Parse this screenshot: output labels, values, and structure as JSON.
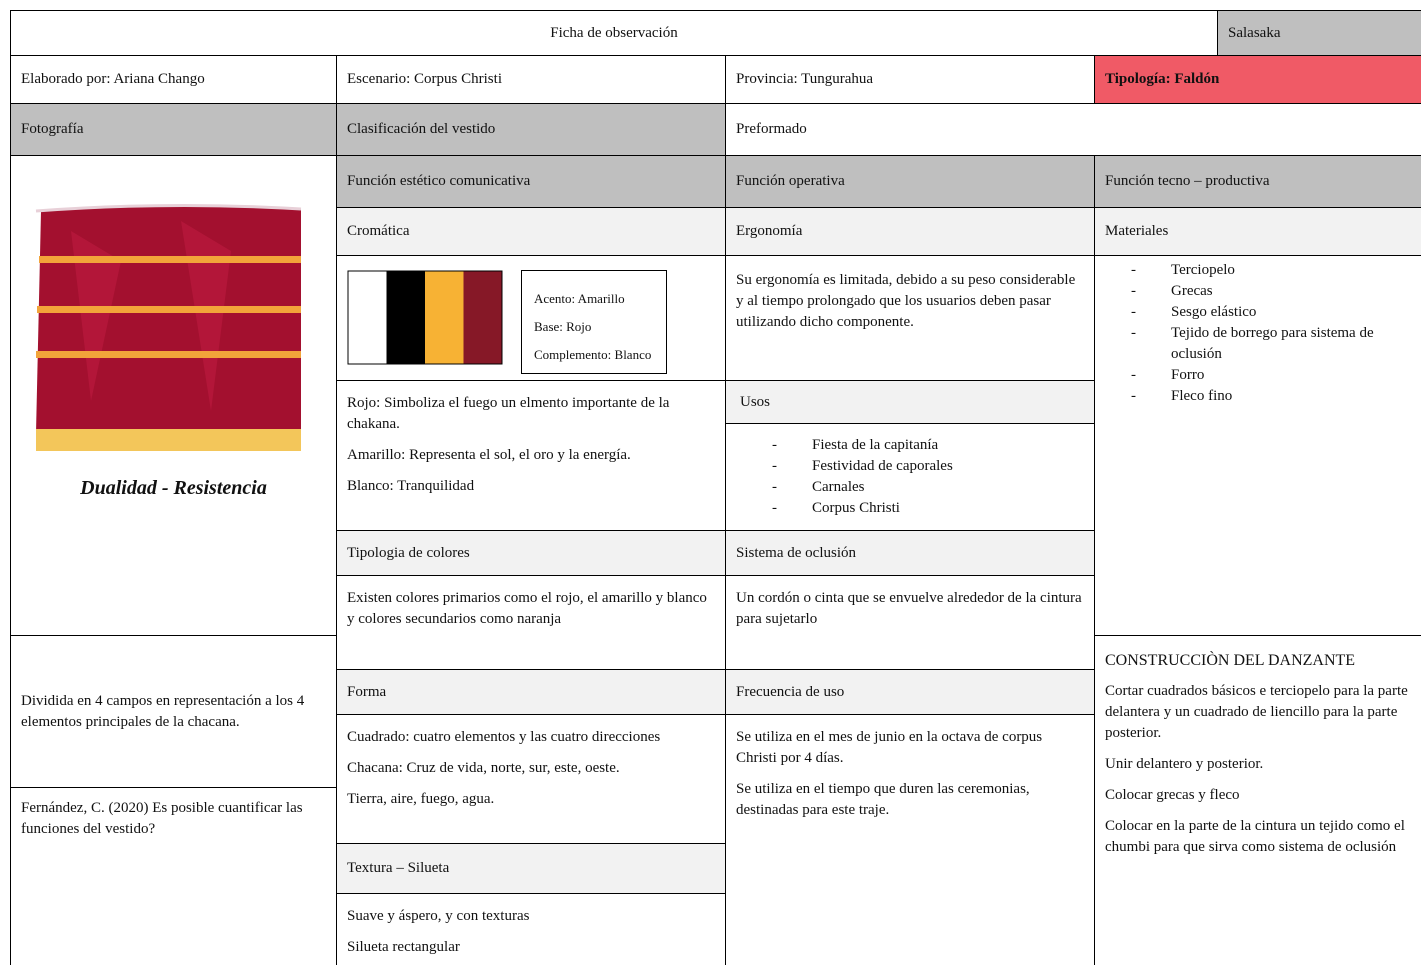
{
  "header": {
    "title": "Ficha de observación",
    "community": "Salasaka"
  },
  "info": {
    "author": "Elaborado por: Ariana Chango",
    "scenario": "Escenario: Corpus Christi",
    "province": "Provincia: Tungurahua",
    "typology": "Tipología: Faldón"
  },
  "labels": {
    "photo": "Fotografía",
    "classification": "Clasificación del vestido",
    "classification_value": "Preformado"
  },
  "photo": {
    "caption": "Dualidad - Resistencia",
    "description": "Dividida en 4 campos en representación a los 4 elementos principales de la chacana.",
    "reference": "Fernández, C. (2020) Es posible cuantificar las funciones del vestido?"
  },
  "aesthetic": {
    "title": "Función estético comunicativa",
    "chromatic": "Cromática",
    "swatches": [
      "#ffffff",
      "#000000",
      "#f7b234",
      "#861827"
    ],
    "legend": [
      "Acento: Amarillo",
      "Base: Rojo",
      "Complemento: Blanco"
    ],
    "meanings": [
      "Rojo: Simboliza el fuego un elmento importante de la chakana.",
      "Amarillo: Representa el sol, el oro y la energía.",
      "Blanco: Tranquilidad"
    ],
    "color_typology": "Tipologia de colores",
    "color_typology_text": "Existen colores primarios como el rojo, el amarillo  y blanco y colores secundarios como naranja",
    "form": "Forma",
    "form_text": [
      "Cuadrado: cuatro elementos y las cuatro direcciones",
      "Chacana: Cruz de vida, norte, sur, este, oeste.",
      "Tierra, aire, fuego, agua."
    ],
    "texture": "Textura – Silueta",
    "texture_text": [
      "Suave y áspero, y con texturas",
      "Silueta rectangular"
    ]
  },
  "operative": {
    "title": "Función operativa",
    "ergonomy": "Ergonomía",
    "ergonomy_text": "Su ergonomía es limitada, debido a su peso considerable y al tiempo prolongado que los usuarios deben pasar utilizando dicho componente.",
    "uses": "Usos",
    "uses_list": [
      "Fiesta de la capitanía",
      "Festividad de caporales",
      "Carnales",
      "Corpus Christi"
    ],
    "closure": "Sistema de oclusión",
    "closure_text": "Un cordón o cinta que se envuelve alrededor de la cintura para sujetarlo",
    "frequency": "Frecuencia de uso",
    "frequency_text": [
      "Se utiliza en el mes de junio en la octava de corpus Christi por 4 días.",
      "Se utiliza en el tiempo que duren las ceremonias, destinadas para este traje."
    ]
  },
  "productive": {
    "title": "Función tecno – productiva",
    "materials": "Materiales",
    "materials_list": [
      "Terciopelo",
      "Grecas",
      "Sesgo elástico",
      "Tejido de borrego para sistema de oclusión",
      "Forro",
      "Fleco fino"
    ],
    "construction_title": "CONSTRUCCIÒN DEL DANZANTE",
    "construction_steps": [
      "Cortar cuadrados básicos e terciopelo para la parte delantera y un cuadrado de liencillo para la parte posterior.",
      "Unir delantero y posterior.",
      "Colocar grecas y fleco",
      "Colocar en la parte de la cintura un tejido como el chumbi para que sirva como sistema de oclusión"
    ]
  }
}
